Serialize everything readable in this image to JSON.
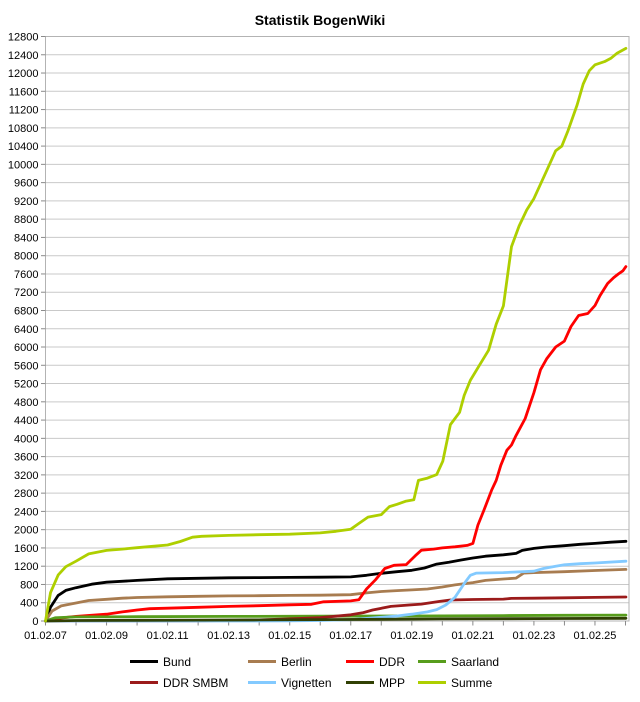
{
  "title": "Statistik BogenWiki",
  "chart_data": {
    "type": "line",
    "title": "Statistik BogenWiki",
    "grid": "horizontal",
    "legend_position": "bottom",
    "x_axis": {
      "tick_labels": [
        "01.02.07",
        "01.02.09",
        "01.02.11",
        "01.02.13",
        "01.02.15",
        "01.02.17",
        "01.02.19",
        "01.02.21",
        "01.02.23",
        "01.02.25"
      ],
      "tick_years": [
        2007.085,
        2009.085,
        2011.085,
        2013.085,
        2015.085,
        2017.085,
        2019.085,
        2021.085,
        2023.085,
        2025.085
      ],
      "minor_tick_step_years": 1,
      "range_years": [
        2007.085,
        2026.2
      ]
    },
    "y_axis": {
      "min": 0,
      "max": 12800,
      "tick_step": 400
    },
    "colors": {
      "grid": "#c9c9c9",
      "border": "#b3b3b3",
      "tick": "#8a8a8a",
      "text": "#000000",
      "background": "#ffffff"
    },
    "series": [
      {
        "name": "Bund",
        "color": "#000000",
        "points": [
          [
            2007.085,
            0
          ],
          [
            2007.25,
            300
          ],
          [
            2007.5,
            560
          ],
          [
            2007.75,
            670
          ],
          [
            2008.085,
            730
          ],
          [
            2008.6,
            805
          ],
          [
            2009.085,
            850
          ],
          [
            2010.085,
            890
          ],
          [
            2011.085,
            925
          ],
          [
            2012.085,
            935
          ],
          [
            2013.085,
            945
          ],
          [
            2014.085,
            950
          ],
          [
            2015.085,
            955
          ],
          [
            2016.085,
            960
          ],
          [
            2017.085,
            965
          ],
          [
            2017.6,
            1000
          ],
          [
            2018.085,
            1045
          ],
          [
            2018.6,
            1080
          ],
          [
            2019.085,
            1110
          ],
          [
            2019.5,
            1160
          ],
          [
            2019.9,
            1245
          ],
          [
            2020.3,
            1285
          ],
          [
            2020.7,
            1335
          ],
          [
            2021.085,
            1380
          ],
          [
            2021.5,
            1420
          ],
          [
            2022.085,
            1450
          ],
          [
            2022.5,
            1480
          ],
          [
            2022.7,
            1545
          ],
          [
            2023.085,
            1590
          ],
          [
            2023.5,
            1620
          ],
          [
            2024.085,
            1650
          ],
          [
            2024.6,
            1680
          ],
          [
            2025.085,
            1700
          ],
          [
            2025.6,
            1725
          ],
          [
            2026.1,
            1745
          ]
        ]
      },
      {
        "name": "Berlin",
        "color": "#a87c50",
        "points": [
          [
            2007.085,
            0
          ],
          [
            2007.3,
            220
          ],
          [
            2007.6,
            330
          ],
          [
            2008.085,
            395
          ],
          [
            2008.5,
            450
          ],
          [
            2009.085,
            475
          ],
          [
            2009.6,
            500
          ],
          [
            2010.085,
            515
          ],
          [
            2011.085,
            530
          ],
          [
            2012.085,
            540
          ],
          [
            2013.085,
            550
          ],
          [
            2014.085,
            555
          ],
          [
            2015.085,
            560
          ],
          [
            2016.085,
            565
          ],
          [
            2017.085,
            575
          ],
          [
            2017.6,
            615
          ],
          [
            2018.085,
            645
          ],
          [
            2018.6,
            665
          ],
          [
            2019.085,
            680
          ],
          [
            2019.6,
            700
          ],
          [
            2020.085,
            745
          ],
          [
            2020.5,
            790
          ],
          [
            2021.085,
            840
          ],
          [
            2021.5,
            890
          ],
          [
            2022.085,
            920
          ],
          [
            2022.5,
            940
          ],
          [
            2022.75,
            1050
          ],
          [
            2023.085,
            1060
          ],
          [
            2024.085,
            1080
          ],
          [
            2025.085,
            1105
          ],
          [
            2026.1,
            1130
          ]
        ]
      },
      {
        "name": "DDR",
        "color": "#ff0000",
        "points": [
          [
            2007.085,
            0
          ],
          [
            2007.5,
            60
          ],
          [
            2008.085,
            100
          ],
          [
            2009.085,
            150
          ],
          [
            2009.6,
            200
          ],
          [
            2010.085,
            240
          ],
          [
            2010.5,
            270
          ],
          [
            2011.085,
            280
          ],
          [
            2012.085,
            300
          ],
          [
            2013.085,
            320
          ],
          [
            2014.085,
            335
          ],
          [
            2015.085,
            355
          ],
          [
            2015.8,
            365
          ],
          [
            2016.2,
            420
          ],
          [
            2017.085,
            440
          ],
          [
            2017.35,
            465
          ],
          [
            2017.6,
            700
          ],
          [
            2017.9,
            905
          ],
          [
            2018.2,
            1150
          ],
          [
            2018.5,
            1220
          ],
          [
            2018.9,
            1235
          ],
          [
            2019.2,
            1430
          ],
          [
            2019.4,
            1550
          ],
          [
            2019.8,
            1575
          ],
          [
            2020.085,
            1600
          ],
          [
            2020.5,
            1625
          ],
          [
            2020.9,
            1655
          ],
          [
            2021.085,
            1700
          ],
          [
            2021.25,
            2100
          ],
          [
            2021.45,
            2430
          ],
          [
            2021.7,
            2865
          ],
          [
            2021.85,
            3080
          ],
          [
            2022.0,
            3410
          ],
          [
            2022.2,
            3740
          ],
          [
            2022.35,
            3855
          ],
          [
            2022.5,
            4065
          ],
          [
            2022.8,
            4435
          ],
          [
            2023.085,
            5000
          ],
          [
            2023.3,
            5500
          ],
          [
            2023.5,
            5740
          ],
          [
            2023.8,
            6000
          ],
          [
            2024.085,
            6130
          ],
          [
            2024.3,
            6450
          ],
          [
            2024.55,
            6690
          ],
          [
            2024.85,
            6735
          ],
          [
            2025.085,
            6910
          ],
          [
            2025.25,
            7125
          ],
          [
            2025.5,
            7390
          ],
          [
            2025.7,
            7520
          ],
          [
            2025.85,
            7600
          ],
          [
            2026.0,
            7670
          ],
          [
            2026.1,
            7760
          ]
        ]
      },
      {
        "name": "Saarland",
        "color": "#579d1c",
        "points": [
          [
            2007.085,
            0
          ],
          [
            2007.4,
            70
          ],
          [
            2008.085,
            90
          ],
          [
            2010.085,
            95
          ],
          [
            2013.085,
            100
          ],
          [
            2016.085,
            105
          ],
          [
            2019.085,
            110
          ],
          [
            2022.085,
            118
          ],
          [
            2024.085,
            124
          ],
          [
            2026.1,
            130
          ]
        ]
      },
      {
        "name": "DDR SMBM",
        "color": "#9b1b1b",
        "points": [
          [
            2007.085,
            0
          ],
          [
            2012.085,
            5
          ],
          [
            2013.085,
            10
          ],
          [
            2014.085,
            25
          ],
          [
            2015.085,
            45
          ],
          [
            2016.085,
            75
          ],
          [
            2016.6,
            105
          ],
          [
            2017.085,
            135
          ],
          [
            2017.5,
            185
          ],
          [
            2017.8,
            240
          ],
          [
            2018.4,
            320
          ],
          [
            2019.0,
            350
          ],
          [
            2019.4,
            370
          ],
          [
            2020.0,
            430
          ],
          [
            2020.35,
            460
          ],
          [
            2021.085,
            470
          ],
          [
            2022.085,
            480
          ],
          [
            2022.35,
            495
          ],
          [
            2023.085,
            500
          ],
          [
            2024.085,
            508
          ],
          [
            2025.085,
            516
          ],
          [
            2026.1,
            525
          ]
        ]
      },
      {
        "name": "Vignetten",
        "color": "#83caff",
        "points": [
          [
            2007.085,
            0
          ],
          [
            2014.085,
            0
          ],
          [
            2015.085,
            5
          ],
          [
            2016.085,
            12
          ],
          [
            2017.085,
            30
          ],
          [
            2018.085,
            80
          ],
          [
            2018.6,
            110
          ],
          [
            2019.085,
            150
          ],
          [
            2019.6,
            200
          ],
          [
            2019.9,
            250
          ],
          [
            2020.2,
            350
          ],
          [
            2020.5,
            520
          ],
          [
            2020.8,
            820
          ],
          [
            2021.0,
            1000
          ],
          [
            2021.2,
            1050
          ],
          [
            2022.085,
            1060
          ],
          [
            2023.085,
            1090
          ],
          [
            2023.4,
            1150
          ],
          [
            2023.8,
            1200
          ],
          [
            2024.085,
            1230
          ],
          [
            2024.6,
            1255
          ],
          [
            2025.085,
            1270
          ],
          [
            2026.1,
            1310
          ]
        ]
      },
      {
        "name": "MPP",
        "color": "#314004",
        "points": [
          [
            2007.085,
            0
          ],
          [
            2008.085,
            10
          ],
          [
            2010.085,
            15
          ],
          [
            2012.085,
            20
          ],
          [
            2014.085,
            25
          ],
          [
            2016.085,
            30
          ],
          [
            2018.085,
            38
          ],
          [
            2020.085,
            45
          ],
          [
            2022.085,
            50
          ],
          [
            2024.085,
            55
          ],
          [
            2026.1,
            60
          ]
        ]
      },
      {
        "name": "Summe",
        "color": "#aecf00",
        "points": [
          [
            2007.085,
            0
          ],
          [
            2007.25,
            620
          ],
          [
            2007.5,
            1010
          ],
          [
            2007.75,
            1190
          ],
          [
            2008.085,
            1310
          ],
          [
            2008.5,
            1470
          ],
          [
            2009.085,
            1545
          ],
          [
            2009.6,
            1575
          ],
          [
            2010.085,
            1605
          ],
          [
            2010.6,
            1635
          ],
          [
            2011.085,
            1665
          ],
          [
            2011.5,
            1740
          ],
          [
            2011.9,
            1835
          ],
          [
            2012.2,
            1855
          ],
          [
            2013.085,
            1875
          ],
          [
            2014.085,
            1890
          ],
          [
            2015.085,
            1900
          ],
          [
            2016.085,
            1930
          ],
          [
            2016.6,
            1965
          ],
          [
            2017.085,
            2010
          ],
          [
            2017.35,
            2135
          ],
          [
            2017.65,
            2275
          ],
          [
            2018.085,
            2330
          ],
          [
            2018.35,
            2505
          ],
          [
            2018.6,
            2555
          ],
          [
            2018.9,
            2625
          ],
          [
            2019.15,
            2655
          ],
          [
            2019.3,
            3080
          ],
          [
            2019.6,
            3130
          ],
          [
            2019.9,
            3205
          ],
          [
            2020.1,
            3500
          ],
          [
            2020.35,
            4300
          ],
          [
            2020.65,
            4570
          ],
          [
            2020.8,
            4940
          ],
          [
            2021.0,
            5270
          ],
          [
            2021.3,
            5600
          ],
          [
            2021.6,
            5930
          ],
          [
            2021.85,
            6500
          ],
          [
            2022.085,
            6900
          ],
          [
            2022.35,
            8200
          ],
          [
            2022.6,
            8650
          ],
          [
            2022.85,
            9000
          ],
          [
            2023.085,
            9250
          ],
          [
            2023.5,
            9860
          ],
          [
            2023.8,
            10300
          ],
          [
            2024.0,
            10400
          ],
          [
            2024.2,
            10730
          ],
          [
            2024.5,
            11300
          ],
          [
            2024.7,
            11760
          ],
          [
            2024.9,
            12050
          ],
          [
            2025.085,
            12180
          ],
          [
            2025.4,
            12250
          ],
          [
            2025.6,
            12320
          ],
          [
            2025.8,
            12430
          ],
          [
            2026.1,
            12540
          ]
        ]
      }
    ]
  }
}
